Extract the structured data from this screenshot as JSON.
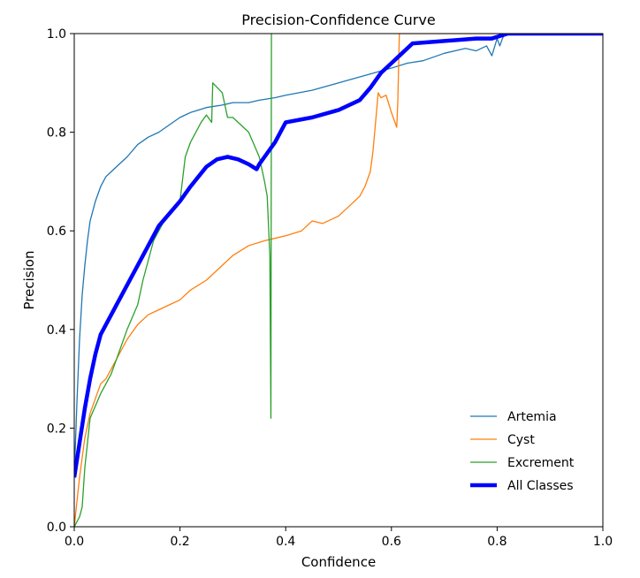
{
  "chart_data": {
    "type": "line",
    "title": "Precision-Confidence Curve",
    "xlabel": "Confidence",
    "ylabel": "Precision",
    "xlim": [
      0.0,
      1.0
    ],
    "ylim": [
      0.0,
      1.0
    ],
    "x_ticks": [
      "0.0",
      "0.2",
      "0.4",
      "0.6",
      "0.8",
      "1.0"
    ],
    "y_ticks": [
      "0.0",
      "0.2",
      "0.4",
      "0.6",
      "0.8",
      "1.0"
    ],
    "grid": false,
    "legend_position": "lower-right",
    "series": [
      {
        "name": "Artemia",
        "color": "#1f77b4",
        "points": [
          [
            0.0,
            0.1
          ],
          [
            0.005,
            0.25
          ],
          [
            0.01,
            0.38
          ],
          [
            0.015,
            0.47
          ],
          [
            0.02,
            0.53
          ],
          [
            0.025,
            0.58
          ],
          [
            0.03,
            0.62
          ],
          [
            0.04,
            0.66
          ],
          [
            0.05,
            0.69
          ],
          [
            0.06,
            0.71
          ],
          [
            0.07,
            0.72
          ],
          [
            0.08,
            0.73
          ],
          [
            0.1,
            0.75
          ],
          [
            0.12,
            0.775
          ],
          [
            0.14,
            0.79
          ],
          [
            0.16,
            0.8
          ],
          [
            0.18,
            0.815
          ],
          [
            0.2,
            0.83
          ],
          [
            0.22,
            0.84
          ],
          [
            0.25,
            0.85
          ],
          [
            0.28,
            0.855
          ],
          [
            0.3,
            0.86
          ],
          [
            0.33,
            0.86
          ],
          [
            0.35,
            0.865
          ],
          [
            0.38,
            0.87
          ],
          [
            0.4,
            0.875
          ],
          [
            0.45,
            0.885
          ],
          [
            0.5,
            0.9
          ],
          [
            0.55,
            0.915
          ],
          [
            0.6,
            0.93
          ],
          [
            0.63,
            0.94
          ],
          [
            0.66,
            0.945
          ],
          [
            0.7,
            0.96
          ],
          [
            0.74,
            0.97
          ],
          [
            0.76,
            0.965
          ],
          [
            0.78,
            0.975
          ],
          [
            0.79,
            0.955
          ],
          [
            0.8,
            0.99
          ],
          [
            0.805,
            0.975
          ],
          [
            0.81,
            0.99
          ],
          [
            0.815,
            1.0
          ],
          [
            1.0,
            1.0
          ]
        ]
      },
      {
        "name": "Cyst",
        "color": "#ff7f0e",
        "points": [
          [
            0.0,
            0.0
          ],
          [
            0.01,
            0.1
          ],
          [
            0.02,
            0.18
          ],
          [
            0.03,
            0.23
          ],
          [
            0.04,
            0.26
          ],
          [
            0.05,
            0.29
          ],
          [
            0.06,
            0.3
          ],
          [
            0.07,
            0.32
          ],
          [
            0.08,
            0.34
          ],
          [
            0.09,
            0.36
          ],
          [
            0.1,
            0.38
          ],
          [
            0.12,
            0.41
          ],
          [
            0.14,
            0.43
          ],
          [
            0.16,
            0.44
          ],
          [
            0.18,
            0.45
          ],
          [
            0.2,
            0.46
          ],
          [
            0.22,
            0.48
          ],
          [
            0.25,
            0.5
          ],
          [
            0.28,
            0.53
          ],
          [
            0.3,
            0.55
          ],
          [
            0.33,
            0.57
          ],
          [
            0.36,
            0.58
          ],
          [
            0.38,
            0.585
          ],
          [
            0.4,
            0.59
          ],
          [
            0.43,
            0.6
          ],
          [
            0.45,
            0.62
          ],
          [
            0.47,
            0.615
          ],
          [
            0.5,
            0.63
          ],
          [
            0.52,
            0.65
          ],
          [
            0.54,
            0.67
          ],
          [
            0.55,
            0.69
          ],
          [
            0.56,
            0.72
          ],
          [
            0.565,
            0.76
          ],
          [
            0.57,
            0.82
          ],
          [
            0.575,
            0.88
          ],
          [
            0.58,
            0.87
          ],
          [
            0.59,
            0.875
          ],
          [
            0.6,
            0.84
          ],
          [
            0.61,
            0.81
          ],
          [
            0.612,
            0.86
          ],
          [
            0.615,
            1.0
          ],
          [
            1.0,
            1.0
          ]
        ]
      },
      {
        "name": "Excrement",
        "color": "#2ca02c",
        "points": [
          [
            0.0,
            0.0
          ],
          [
            0.01,
            0.02
          ],
          [
            0.015,
            0.04
          ],
          [
            0.02,
            0.12
          ],
          [
            0.03,
            0.22
          ],
          [
            0.05,
            0.27
          ],
          [
            0.07,
            0.31
          ],
          [
            0.09,
            0.37
          ],
          [
            0.1,
            0.4
          ],
          [
            0.12,
            0.45
          ],
          [
            0.13,
            0.5
          ],
          [
            0.15,
            0.58
          ],
          [
            0.17,
            0.62
          ],
          [
            0.2,
            0.66
          ],
          [
            0.21,
            0.75
          ],
          [
            0.22,
            0.78
          ],
          [
            0.24,
            0.82
          ],
          [
            0.25,
            0.835
          ],
          [
            0.26,
            0.82
          ],
          [
            0.262,
            0.9
          ],
          [
            0.28,
            0.88
          ],
          [
            0.29,
            0.83
          ],
          [
            0.3,
            0.83
          ],
          [
            0.33,
            0.8
          ],
          [
            0.35,
            0.75
          ],
          [
            0.36,
            0.7
          ],
          [
            0.365,
            0.67
          ],
          [
            0.37,
            0.55
          ],
          [
            0.372,
            0.22
          ],
          [
            0.373,
            1.0
          ]
        ]
      },
      {
        "name": "All Classes",
        "color": "#0000ff",
        "points": [
          [
            0.0,
            0.1
          ],
          [
            0.01,
            0.17
          ],
          [
            0.02,
            0.24
          ],
          [
            0.03,
            0.3
          ],
          [
            0.04,
            0.35
          ],
          [
            0.05,
            0.39
          ],
          [
            0.07,
            0.43
          ],
          [
            0.1,
            0.49
          ],
          [
            0.12,
            0.53
          ],
          [
            0.15,
            0.59
          ],
          [
            0.16,
            0.61
          ],
          [
            0.2,
            0.66
          ],
          [
            0.22,
            0.69
          ],
          [
            0.25,
            0.73
          ],
          [
            0.27,
            0.745
          ],
          [
            0.29,
            0.75
          ],
          [
            0.31,
            0.745
          ],
          [
            0.33,
            0.735
          ],
          [
            0.345,
            0.725
          ],
          [
            0.35,
            0.735
          ],
          [
            0.36,
            0.75
          ],
          [
            0.38,
            0.78
          ],
          [
            0.39,
            0.8
          ],
          [
            0.4,
            0.82
          ],
          [
            0.45,
            0.83
          ],
          [
            0.5,
            0.845
          ],
          [
            0.54,
            0.865
          ],
          [
            0.56,
            0.89
          ],
          [
            0.58,
            0.92
          ],
          [
            0.6,
            0.94
          ],
          [
            0.62,
            0.96
          ],
          [
            0.64,
            0.98
          ],
          [
            0.7,
            0.985
          ],
          [
            0.76,
            0.99
          ],
          [
            0.79,
            0.99
          ],
          [
            0.82,
            1.0
          ],
          [
            1.0,
            1.0
          ]
        ]
      }
    ]
  }
}
